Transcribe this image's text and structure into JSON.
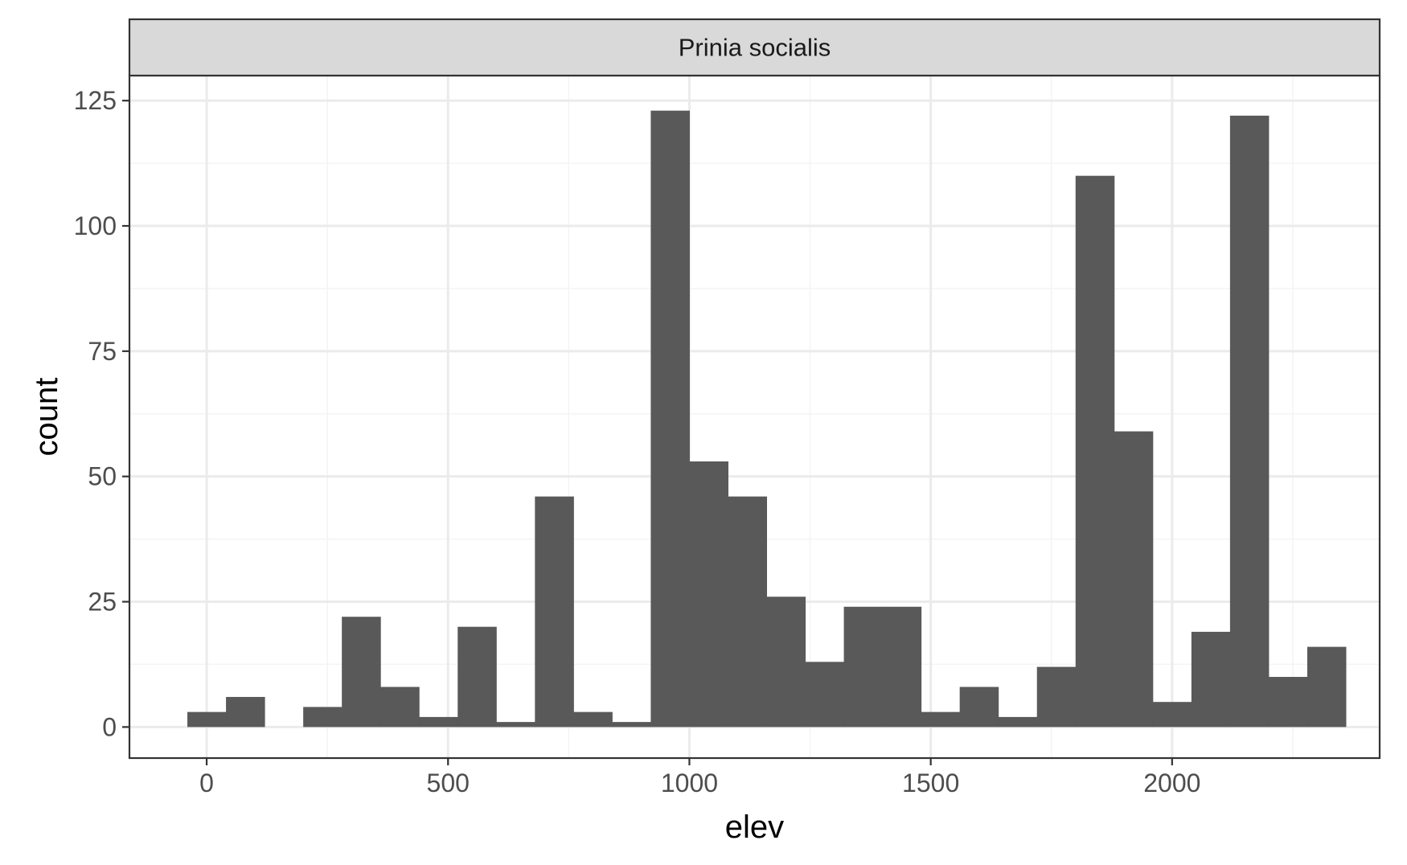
{
  "chart_data": {
    "type": "bar",
    "facet_label": "Prinia socialis",
    "xlabel": "elev",
    "ylabel": "count",
    "xlim": [
      -160,
      2430
    ],
    "ylim": [
      -6.2,
      130
    ],
    "x_ticks": [
      0,
      500,
      1000,
      1500,
      2000
    ],
    "y_ticks": [
      0,
      25,
      50,
      75,
      100,
      125
    ],
    "x_minor_ticks": [
      250,
      750,
      1250,
      1750,
      2250
    ],
    "y_minor_ticks": [
      12.5,
      37.5,
      62.5,
      87.5,
      112.5
    ],
    "bin_width": 80,
    "bin_centers": [
      0,
      80,
      160,
      240,
      320,
      400,
      480,
      560,
      640,
      720,
      800,
      880,
      960,
      1040,
      1120,
      1200,
      1280,
      1360,
      1440,
      1520,
      1600,
      1680,
      1760,
      1840,
      1920,
      2000,
      2080,
      2160,
      2240,
      2320
    ],
    "values": [
      3,
      6,
      0,
      4,
      22,
      8,
      2,
      20,
      1,
      46,
      3,
      1,
      123,
      53,
      46,
      26,
      13,
      24,
      24,
      3,
      8,
      2,
      12,
      110,
      59,
      5,
      19,
      122,
      10,
      16
    ],
    "grid": true,
    "colors": {
      "bar": "#595959",
      "panel_background": "#ffffff",
      "grid_major": "#ebebeb",
      "grid_minor": "#f4f4f4",
      "border": "#333333",
      "strip_fill": "#d9d9d9",
      "tick_label": "#4d4d4d",
      "title_text": "#000000",
      "strip_text": "#1a1a1a"
    }
  }
}
